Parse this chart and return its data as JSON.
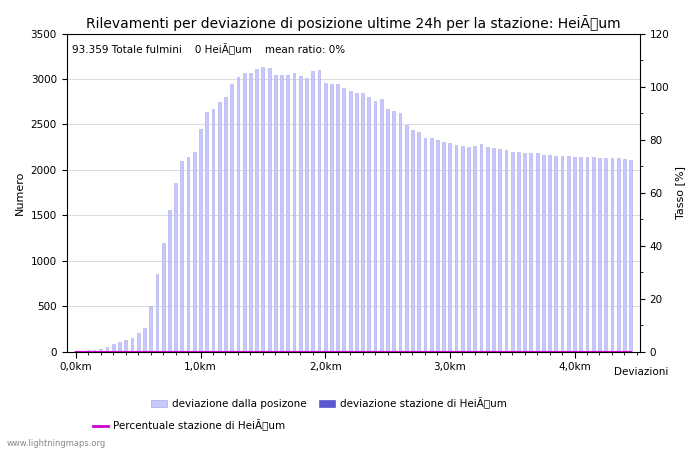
{
  "title": "Rilevamenti per deviazione di posizione ultime 24h per la stazione: HeiÃum",
  "subtitle": "93.359 Totale fulmini    0 HeiÃum    mean ratio: 0%",
  "xlabel_right": "Deviazioni",
  "ylabel_left": "Numero",
  "ylabel_right": "Tasso [%]",
  "watermark": "www.lightningmaps.org",
  "legend_label1": "deviazione dalla posizone",
  "legend_label2": "deviazione stazione di HeiÃum",
  "legend_label3": "Percentuale stazione di HeiÃum",
  "bar_color": "#c8c8ff",
  "bar_edge_color": "#a8a8e8",
  "bar2_color": "#5858d0",
  "line_color": "#cc00cc",
  "bg_color": "#ffffff",
  "grid_color": "#cccccc",
  "ylim_left": [
    0,
    3500
  ],
  "ylim_right": [
    0,
    120
  ],
  "yticks_left": [
    0,
    500,
    1000,
    1500,
    2000,
    2500,
    3000,
    3500
  ],
  "yticks_right": [
    0,
    20,
    40,
    60,
    80,
    100,
    120
  ],
  "xtick_labels": [
    "0,0km",
    "1,0km",
    "2,0km",
    "3,0km",
    "4,0km"
  ],
  "xtick_positions": [
    0,
    20,
    40,
    60,
    80
  ],
  "bar_values": [
    5,
    10,
    15,
    20,
    30,
    50,
    80,
    110,
    130,
    150,
    200,
    260,
    500,
    850,
    1200,
    1560,
    1850,
    2100,
    2140,
    2200,
    2450,
    2640,
    2670,
    2750,
    2800,
    2940,
    3020,
    3060,
    3070,
    3110,
    3130,
    3120,
    3040,
    3040,
    3040,
    3060,
    3030,
    3010,
    3090,
    3100,
    2950,
    2940,
    2940,
    2900,
    2870,
    2850,
    2840,
    2800,
    2760,
    2780,
    2670,
    2650,
    2630,
    2490,
    2440,
    2420,
    2350,
    2350,
    2330,
    2310,
    2300,
    2270,
    2260,
    2250,
    2260,
    2280,
    2250,
    2240,
    2230,
    2220,
    2200,
    2200,
    2190,
    2180,
    2180,
    2160,
    2160,
    2150,
    2150,
    2150,
    2140,
    2140,
    2140,
    2140,
    2130,
    2130,
    2130,
    2130,
    2120,
    2110
  ],
  "bar2_values": [
    0,
    0,
    0,
    0,
    0,
    0,
    0,
    0,
    0,
    0,
    0,
    0,
    0,
    0,
    0,
    0,
    0,
    0,
    0,
    0,
    0,
    0,
    0,
    0,
    0,
    0,
    0,
    0,
    0,
    0,
    0,
    0,
    0,
    0,
    0,
    0,
    0,
    0,
    0,
    0,
    0,
    0,
    0,
    0,
    0,
    0,
    0,
    0,
    0,
    0,
    0,
    0,
    0,
    0,
    0,
    0,
    0,
    0,
    0,
    0,
    0,
    0,
    0,
    0,
    0,
    0,
    0,
    0,
    0,
    0,
    0,
    0,
    0,
    0,
    0,
    0,
    0,
    0,
    0,
    0,
    0,
    0,
    0,
    0,
    0,
    0,
    0,
    0,
    0,
    0
  ],
  "line_values": [
    0,
    0,
    0,
    0,
    0,
    0,
    0,
    0,
    0,
    0,
    0,
    0,
    0,
    0,
    0,
    0,
    0,
    0,
    0,
    0,
    0,
    0,
    0,
    0,
    0,
    0,
    0,
    0,
    0,
    0,
    0,
    0,
    0,
    0,
    0,
    0,
    0,
    0,
    0,
    0,
    0,
    0,
    0,
    0,
    0,
    0,
    0,
    0,
    0,
    0,
    0,
    0,
    0,
    0,
    0,
    0,
    0,
    0,
    0,
    0,
    0,
    0,
    0,
    0,
    0,
    0,
    0,
    0,
    0,
    0,
    0,
    0,
    0,
    0,
    0,
    0,
    0,
    0,
    0,
    0,
    0,
    0,
    0,
    0,
    0,
    0,
    0,
    0,
    0,
    0
  ],
  "title_fontsize": 10,
  "subtitle_fontsize": 7.5,
  "tick_fontsize": 7.5,
  "label_fontsize": 8,
  "bar_width": 0.45
}
